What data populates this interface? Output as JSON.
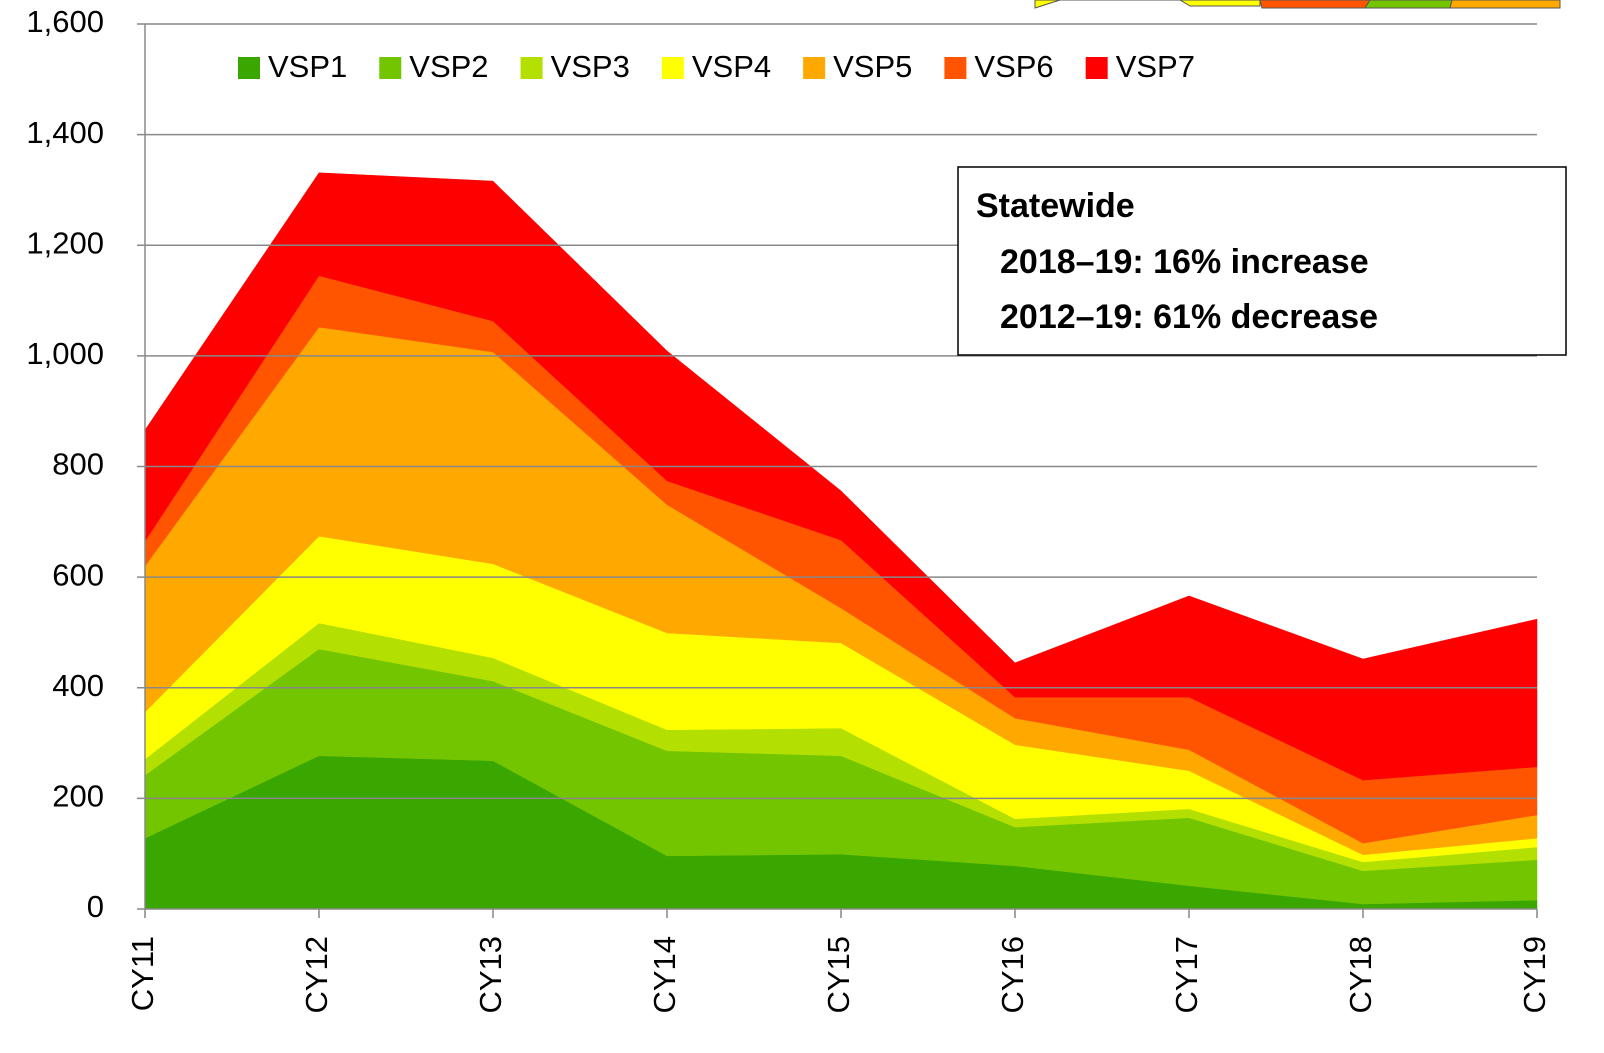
{
  "chart_data": {
    "type": "stacked_area",
    "categories": [
      "CY11",
      "CY12",
      "CY13",
      "CY14",
      "CY15",
      "CY16",
      "CY17",
      "CY18",
      "CY19"
    ],
    "series": [
      {
        "name": "VSP1",
        "color": "#3aa600",
        "values": [
          128,
          277,
          268,
          96,
          99,
          78,
          42,
          9,
          16
        ]
      },
      {
        "name": "VSP2",
        "color": "#73c500",
        "values": [
          114,
          193,
          144,
          190,
          178,
          70,
          123,
          60,
          73
        ]
      },
      {
        "name": "VSP3",
        "color": "#b3e000",
        "values": [
          29,
          47,
          42,
          38,
          50,
          15,
          16,
          16,
          23
        ]
      },
      {
        "name": "VSP4",
        "color": "#ffff00",
        "values": [
          85,
          157,
          170,
          175,
          154,
          134,
          69,
          13,
          16
        ]
      },
      {
        "name": "VSP5",
        "color": "#ffa800",
        "values": [
          264,
          378,
          383,
          232,
          63,
          48,
          38,
          21,
          42
        ]
      },
      {
        "name": "VSP6",
        "color": "#ff5500",
        "values": [
          45,
          93,
          56,
          43,
          123,
          38,
          95,
          114,
          87
        ]
      },
      {
        "name": "VSP7",
        "color": "#ff0000",
        "values": [
          201,
          186,
          253,
          235,
          89,
          62,
          183,
          219,
          267
        ]
      }
    ],
    "ylim": [
      0,
      1600
    ],
    "yticks": [
      0,
      200,
      400,
      600,
      800,
      {
        "value": 1000,
        "label": "1,000"
      },
      {
        "value": 1200,
        "label": "1,200"
      },
      {
        "value": 1400,
        "label": "1,400"
      },
      {
        "value": 1600,
        "label": "1,600"
      }
    ],
    "grid": true,
    "legend": "top",
    "annotation": {
      "title": "Statewide",
      "lines": [
        "2018–19: 16% increase",
        "2012–19: 61% decrease"
      ]
    }
  }
}
